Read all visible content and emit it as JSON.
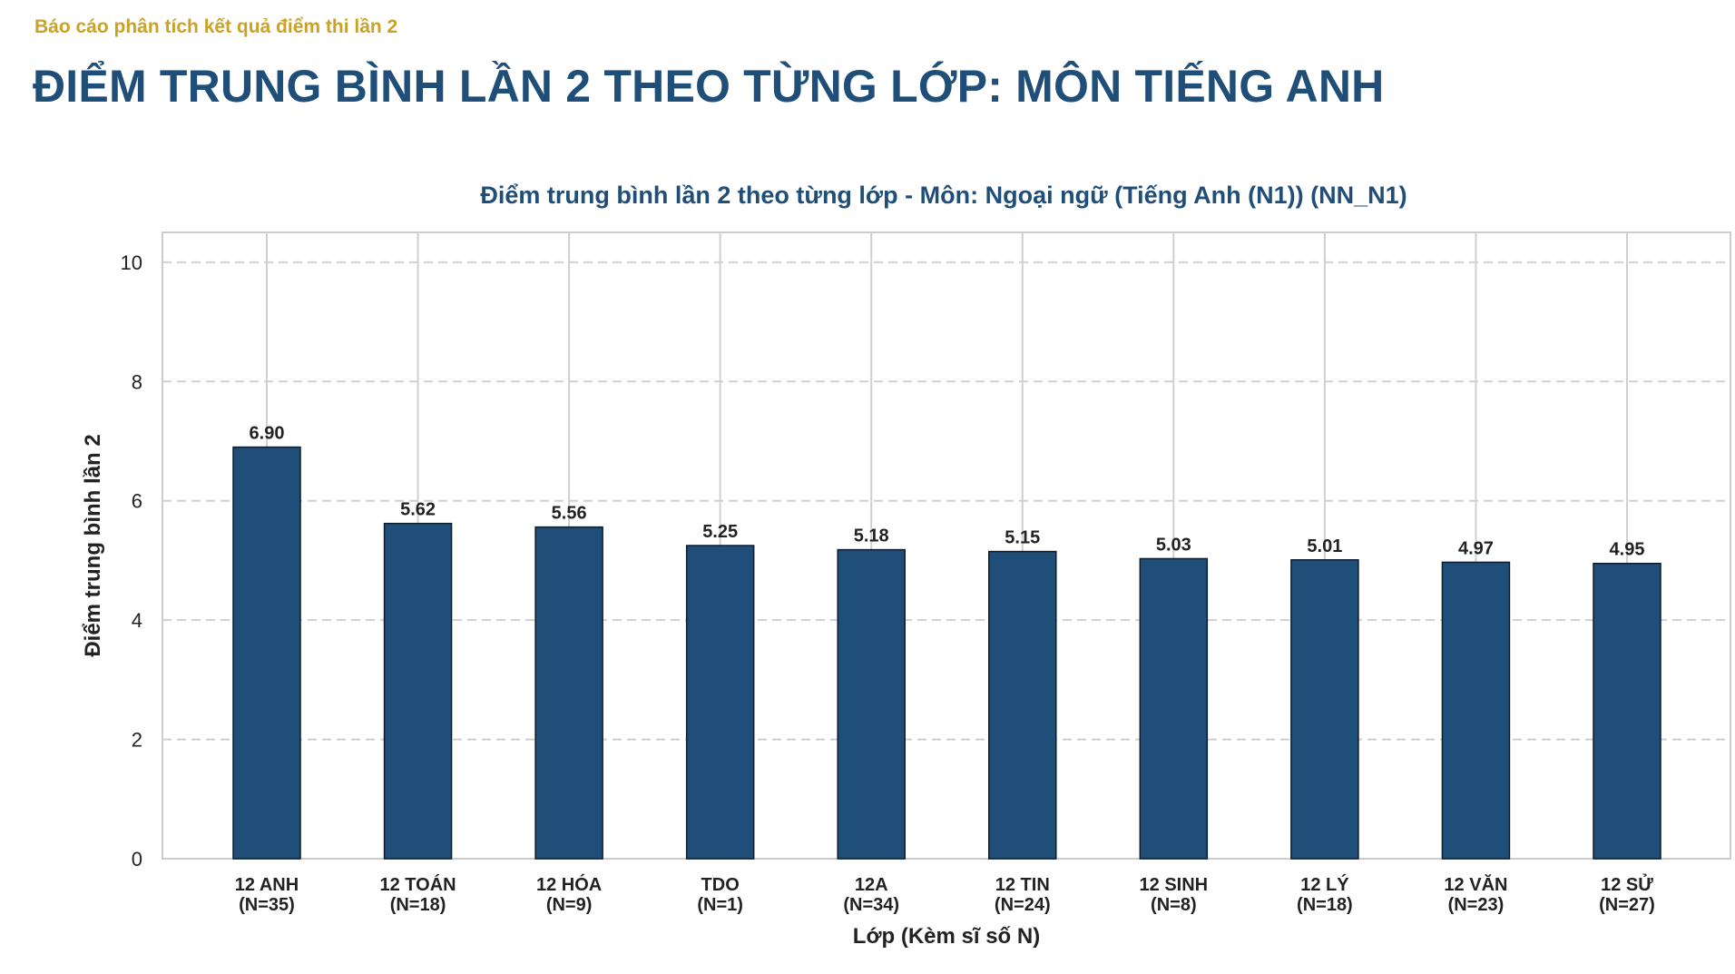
{
  "header": {
    "kicker": "Báo cáo phân tích kết quả điểm thi lần 2",
    "title": "ĐIỂM TRUNG BÌNH LẦN 2 THEO TỪNG LỚP: MÔN TIẾNG ANH"
  },
  "chart_data": {
    "type": "bar",
    "title": "Điểm trung bình lần 2 theo từng lớp - Môn: Ngoại ngữ (Tiếng Anh (N1)) (NN_N1)",
    "xlabel": "Lớp (Kèm sĩ số N)",
    "ylabel": "Điểm trung bình lần 2",
    "ylim": [
      0,
      10.5
    ],
    "yticks": [
      0,
      2,
      4,
      6,
      8,
      10
    ],
    "grid": true,
    "categories": [
      {
        "name": "12 ANH",
        "n": "(N=35)"
      },
      {
        "name": "12 TOÁN",
        "n": "(N=18)"
      },
      {
        "name": "12 HÓA",
        "n": "(N=9)"
      },
      {
        "name": "TDO",
        "n": "(N=1)"
      },
      {
        "name": "12A",
        "n": "(N=34)"
      },
      {
        "name": "12 TIN",
        "n": "(N=24)"
      },
      {
        "name": "12 SINH",
        "n": "(N=8)"
      },
      {
        "name": "12 LÝ",
        "n": "(N=18)"
      },
      {
        "name": "12 VĂN",
        "n": "(N=23)"
      },
      {
        "name": "12 SỬ",
        "n": "(N=27)"
      }
    ],
    "values": [
      6.9,
      5.62,
      5.56,
      5.25,
      5.18,
      5.15,
      5.03,
      5.01,
      4.97,
      4.95
    ],
    "value_labels": [
      "6.90",
      "5.62",
      "5.56",
      "5.25",
      "5.18",
      "5.15",
      "5.03",
      "5.01",
      "4.97",
      "4.95"
    ],
    "colors": {
      "bar": "#1f4e79",
      "bar_edge": "#0d1b2a",
      "grid": "#d0d0d0"
    }
  }
}
